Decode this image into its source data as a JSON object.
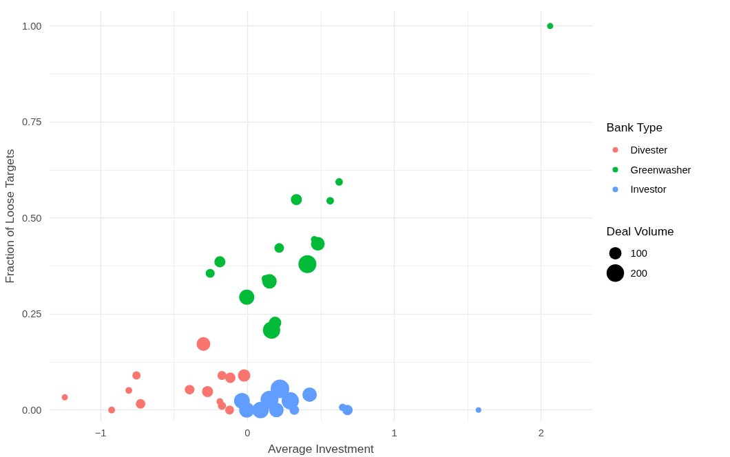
{
  "chart_data": {
    "type": "bubble",
    "xlabel": "Average Investment",
    "ylabel": "Fraction of Loose Targets",
    "legend_title": "Bank Type",
    "annotations": [
      "Deal Volume"
    ],
    "size_legend": [
      100,
      200
    ],
    "legend": "right",
    "grid": true,
    "marker": "circle",
    "xlim": [
      -1.35,
      2.35
    ],
    "ylim": [
      -0.03,
      1.04
    ],
    "xticks": [
      {
        "value": -1,
        "label": "−1"
      },
      0,
      1,
      2
    ],
    "yticks": [
      {
        "value": 0,
        "label": "0.00"
      },
      {
        "value": 0.25,
        "label": "0.25"
      },
      {
        "value": 0.5,
        "label": "0.50"
      },
      {
        "value": 0.75,
        "label": "0.75"
      },
      {
        "value": 1,
        "label": "1.00"
      }
    ],
    "series": [
      {
        "name": "Divester",
        "color": "#f8766d",
        "x": [
          -1.244,
          -0.925,
          -0.808,
          -0.756,
          -0.728,
          -0.394,
          -0.272,
          -0.3,
          -0.174,
          -0.117,
          -0.023,
          -0.188,
          -0.174,
          -0.122
        ],
        "values": [
          0.033,
          0.0,
          0.051,
          0.09,
          0.016,
          0.053,
          0.048,
          0.172,
          0.09,
          0.084,
          0.09,
          0.022,
          0.011,
          0.0
        ],
        "sizes": [
          25,
          30,
          30,
          44,
          60,
          60,
          80,
          123,
          52,
          70,
          100,
          30,
          44,
          52
        ]
      },
      {
        "name": "Greenwasher",
        "color": "#00ba38",
        "x": [
          0.624,
          0.333,
          0.563,
          0.455,
          0.479,
          0.216,
          -0.188,
          -0.254,
          0.408,
          0.122,
          0.15,
          -0.005,
          0.188,
          0.164,
          2.061
        ],
        "values": [
          0.594,
          0.548,
          0.545,
          0.444,
          0.433,
          0.422,
          0.386,
          0.356,
          0.38,
          0.342,
          0.335,
          0.294,
          0.227,
          0.208,
          1.0
        ],
        "sizes": [
          37,
          80,
          37,
          30,
          123,
          60,
          80,
          52,
          209,
          37,
          136,
          150,
          100,
          193,
          25
        ]
      },
      {
        "name": "Investor",
        "color": "#619cff",
        "x": [
          -0.038,
          -0.005,
          0.089,
          0.15,
          0.221,
          0.197,
          0.291,
          0.319,
          0.423,
          0.648,
          0.681,
          1.573
        ],
        "values": [
          0.024,
          0.0,
          0.0,
          0.027,
          0.055,
          0.0,
          0.024,
          0.0,
          0.04,
          0.007,
          0.0,
          0.0
        ],
        "sizes": [
          163,
          150,
          178,
          209,
          225,
          136,
          193,
          60,
          136,
          37,
          70,
          20
        ]
      }
    ]
  }
}
